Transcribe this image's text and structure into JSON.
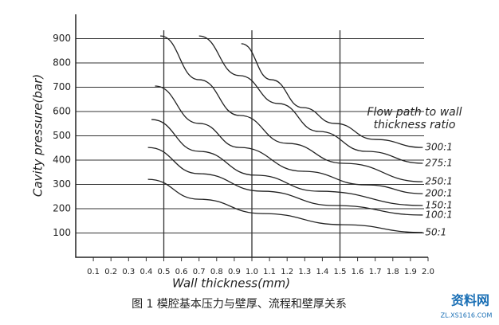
{
  "chart_data": {
    "type": "line",
    "xlabel": "Wall thickness(mm)",
    "ylabel": "Cavity pressure(bar)",
    "legend_title": [
      "Flow path to wall",
      "thickness ratio"
    ],
    "xlim": [
      0,
      2.0
    ],
    "ylim": [
      0,
      1000
    ],
    "xticks": [
      0.1,
      0.2,
      0.3,
      0.4,
      0.5,
      0.6,
      0.7,
      0.8,
      0.9,
      {
        "value": 1.0,
        "label": "1.0"
      },
      1.1,
      1.2,
      1.3,
      1.4,
      1.5,
      1.6,
      1.7,
      1.8,
      1.9,
      {
        "value": 2.0,
        "label": "2.0"
      }
    ],
    "yticks": [
      100,
      200,
      300,
      400,
      500,
      600,
      700,
      800,
      900
    ],
    "grid": true,
    "vlines": [
      0.5,
      1.0,
      1.5
    ],
    "series": [
      {
        "name": "300:1",
        "color": "#222222",
        "x": [
          0.94,
          1.11,
          1.29,
          1.47,
          1.7,
          1.97
        ],
        "values": [
          879,
          731,
          616,
          551,
          485,
          452
        ]
      },
      {
        "name": "275:1",
        "color": "#222222",
        "x": [
          0.7,
          0.93,
          1.15,
          1.38,
          1.65,
          1.97
        ],
        "values": [
          911,
          748,
          633,
          518,
          436,
          387
        ]
      },
      {
        "name": "250:1",
        "color": "#222222",
        "x": [
          0.48,
          0.7,
          0.93,
          1.2,
          1.52,
          1.97
        ],
        "values": [
          911,
          731,
          584,
          469,
          387,
          311
        ]
      },
      {
        "name": "200:1",
        "color": "#222222",
        "x": [
          0.45,
          0.7,
          0.93,
          1.29,
          1.65,
          1.97
        ],
        "values": [
          705,
          551,
          452,
          354,
          298,
          262
        ]
      },
      {
        "name": "150:1",
        "color": "#222222",
        "x": [
          0.43,
          0.7,
          1.02,
          1.38,
          1.97
        ],
        "values": [
          567,
          436,
          338,
          272,
          213
        ]
      },
      {
        "name": "100:1",
        "color": "#222222",
        "x": [
          0.41,
          0.7,
          1.06,
          1.47,
          1.97
        ],
        "values": [
          452,
          344,
          272,
          213,
          174
        ]
      },
      {
        "name": "50:1",
        "color": "#222222",
        "x": [
          0.41,
          0.7,
          1.06,
          1.52,
          1.97
        ],
        "values": [
          321,
          239,
          180,
          134,
          102
        ]
      }
    ]
  },
  "caption": "图 1 模腔基本压力与壁厚、流程和壁厚关系",
  "watermark": {
    "text": "资料网",
    "url": "ZL.XS1616.COM"
  }
}
